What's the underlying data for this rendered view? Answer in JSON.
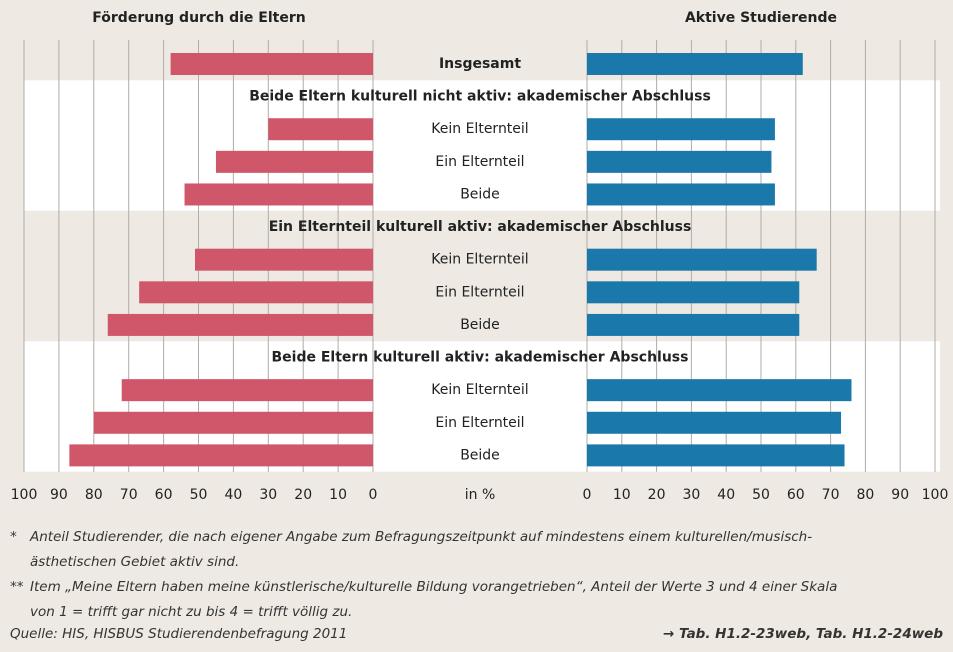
{
  "chart_data": {
    "type": "butterfly",
    "categories": [
      "Insgesamt",
      "Beide Eltern kulturell nicht aktiv: akademischer Abschluss",
      "Kein Elternteil",
      "Ein Elternteil",
      "Beide",
      "Ein Elternteil kulturell aktiv: akademischer Abschluss",
      "Kein Elternteil",
      "Ein Elternteil",
      "Beide",
      "Beide Eltern kulturell aktiv: akademischer Abschluss",
      "Kein Elternteil",
      "Ein Elternteil",
      "Beide"
    ],
    "series": [
      {
        "name": "Förderung durch die Eltern",
        "color": "#d0566a",
        "values": [
          58,
          null,
          30,
          45,
          54,
          null,
          51,
          67,
          76,
          null,
          72,
          80,
          87
        ]
      },
      {
        "name": "Aktive Studierende",
        "color": "#1a78aa",
        "values": [
          62,
          null,
          54,
          53,
          54,
          null,
          66,
          61,
          61,
          null,
          76,
          73,
          74
        ]
      }
    ],
    "xlim": [
      0,
      100
    ],
    "xticks": [
      0,
      10,
      20,
      30,
      40,
      50,
      60,
      70,
      80,
      90,
      100
    ],
    "grid": true,
    "unit_label": "in %",
    "notes": [
      {
        "marker": "*",
        "lines": [
          "Anteil Studierender, die nach eigener Angabe zum Befragungszeitpunkt auf mindestens einem kulturellen/musisch-",
          "ästhetischen Gebiet aktiv sind."
        ]
      },
      {
        "marker": "**",
        "lines": [
          "Item „Meine Eltern haben meine künstlerische/kulturelle Bildung vorangetrieben“, Anteil der Werte 3 und 4 einer Skala",
          "von 1 = trifft gar nicht zu bis 4 = trifft völlig zu."
        ]
      }
    ],
    "source": "Quelle: HIS, HISBUS Studierendenbefragung 2011",
    "reference": "→ Tab. H1.2-23web, Tab. H1.2-24web"
  }
}
